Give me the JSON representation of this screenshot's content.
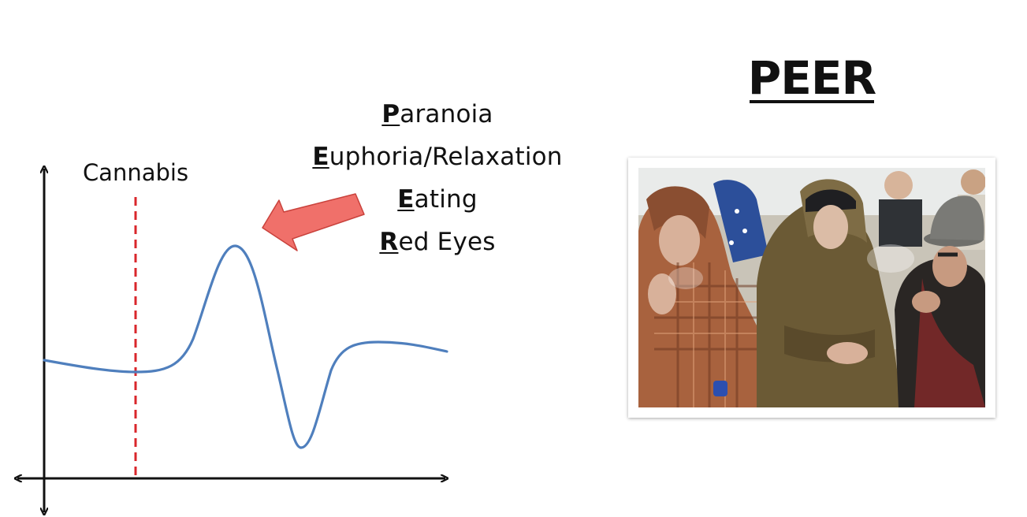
{
  "diagram": {
    "marker_label": "Cannabis",
    "colors": {
      "curve": "#4f7fbd",
      "marker": "#d9262b",
      "arrow_fill": "#f0706a",
      "arrow_stroke": "#c9423c",
      "axis": "#111111"
    }
  },
  "effects": [
    {
      "initial": "P",
      "rest": "aranoia"
    },
    {
      "initial": "E",
      "rest": "uphoria/Relaxation"
    },
    {
      "initial": "E",
      "rest": "ating"
    },
    {
      "initial": "R",
      "rest": "ed Eyes"
    }
  ],
  "peer": {
    "title": "PEER",
    "photo": {
      "description_icon": "group-smoking-photo",
      "colors": {
        "hoodie_plaid": "#a8623e",
        "jacket_olive": "#6b5a35",
        "crowd_blue": "#2c4f9a",
        "sky": "#e9ebea",
        "hat": "#7a7a76"
      }
    }
  }
}
